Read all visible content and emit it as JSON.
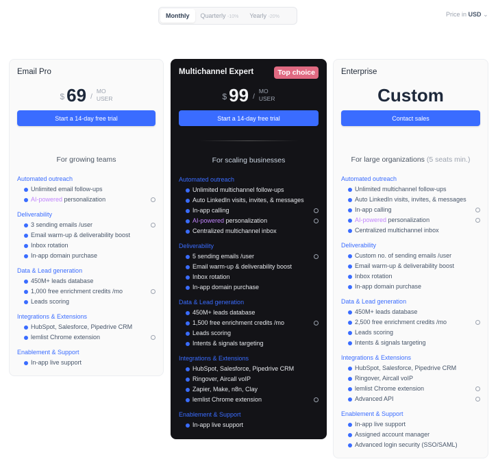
{
  "billing": {
    "options": [
      {
        "label": "Monthly",
        "discount": ""
      },
      {
        "label": "Quarterly",
        "discount": "-10%"
      },
      {
        "label": "Yearly",
        "discount": "-20%"
      }
    ],
    "selected": "Monthly"
  },
  "currency": {
    "prefix": "Price in",
    "value": "USD"
  },
  "colors": {
    "accent": "#3a6cff",
    "dark_card": "#131317",
    "badge": "#e06a82",
    "ai": "#c084fc"
  },
  "plans": [
    {
      "name": "Email Pro",
      "currency": "$",
      "price": "69",
      "slash": "/",
      "unit1": "MO",
      "unit2": "USER",
      "cta": "Start a 14-day free trial",
      "tagline": "For growing teams",
      "tagline_extra": "",
      "sections": [
        {
          "title": "Automated outreach",
          "items": [
            {
              "text": "Unlimited email follow-ups"
            },
            {
              "ai": "AI-powered",
              "text": " personalization",
              "info": true
            }
          ]
        },
        {
          "title": "Deliverability",
          "items": [
            {
              "text": "3 sending emails /user",
              "info": true
            },
            {
              "text": "Email warm-up & deliverability boost"
            },
            {
              "text": "Inbox rotation"
            },
            {
              "text": "In-app domain purchase"
            }
          ]
        },
        {
          "title": "Data & Lead generation",
          "items": [
            {
              "text": "450M+ leads database"
            },
            {
              "text": "1,000 free enrichment credits /mo",
              "info": true
            },
            {
              "text": "Leads scoring"
            }
          ]
        },
        {
          "title": "Integrations & Extensions",
          "items": [
            {
              "text": "HubSpot, Salesforce, Pipedrive CRM"
            },
            {
              "text": "lemlist Chrome extension",
              "info": true
            }
          ]
        },
        {
          "title": "Enablement & Support",
          "items": [
            {
              "text": "In-app live support"
            }
          ]
        }
      ]
    },
    {
      "name": "Multichannel Expert",
      "badge": "Top choice",
      "currency": "$",
      "price": "99",
      "slash": "/",
      "unit1": "MO",
      "unit2": "USER",
      "cta": "Start a 14-day free trial",
      "tagline": "For scaling businesses",
      "tagline_extra": "",
      "sections": [
        {
          "title": "Automated outreach",
          "items": [
            {
              "text": "Unlimited multichannel follow-ups"
            },
            {
              "text": "Auto LinkedIn visits, invites, & messages"
            },
            {
              "text": "In-app calling",
              "info": true
            },
            {
              "ai": "AI-powered",
              "text": " personalization",
              "info": true
            },
            {
              "text": "Centralized multichannel inbox"
            }
          ]
        },
        {
          "title": "Deliverability",
          "items": [
            {
              "text": "5 sending emails /user",
              "info": true
            },
            {
              "text": "Email warm-up & deliverability boost"
            },
            {
              "text": "Inbox rotation"
            },
            {
              "text": "In-app domain purchase"
            }
          ]
        },
        {
          "title": "Data & Lead generation",
          "items": [
            {
              "text": "450M+ leads database"
            },
            {
              "text": "1,500 free enrichment credits /mo",
              "info": true
            },
            {
              "text": "Leads scoring"
            },
            {
              "text": "Intents & signals targeting"
            }
          ]
        },
        {
          "title": "Integrations & Extensions",
          "items": [
            {
              "text": "HubSpot, Salesforce, Pipedrive CRM"
            },
            {
              "text": "Ringover, Aircall voIP"
            },
            {
              "text": "Zapier, Make, n8n, Clay"
            },
            {
              "text": "lemlist Chrome extension",
              "info": true
            }
          ]
        },
        {
          "title": "Enablement & Support",
          "items": [
            {
              "text": "In-app live support"
            }
          ]
        }
      ]
    },
    {
      "name": "Enterprise",
      "custom": "Custom",
      "cta": "Contact sales",
      "tagline": "For large organizations",
      "tagline_extra": " (5 seats min.)",
      "sections": [
        {
          "title": "Automated outreach",
          "items": [
            {
              "text": "Unlimited multichannel follow-ups"
            },
            {
              "text": "Auto LinkedIn visits, invites, & messages"
            },
            {
              "text": "In-app calling",
              "info": true
            },
            {
              "ai": "AI-powered",
              "text": " personalization",
              "info": true
            },
            {
              "text": "Centralized multichannel inbox"
            }
          ]
        },
        {
          "title": "Deliverability",
          "items": [
            {
              "text": "Custom no. of sending emails /user"
            },
            {
              "text": "Email warm-up & deliverability boost"
            },
            {
              "text": "Inbox rotation"
            },
            {
              "text": "In-app domain purchase"
            }
          ]
        },
        {
          "title": "Data & Lead generation",
          "items": [
            {
              "text": "450M+ leads database"
            },
            {
              "text": "2,500 free enrichment credits /mo",
              "info": true
            },
            {
              "text": "Leads scoring"
            },
            {
              "text": "Intents & signals targeting"
            }
          ]
        },
        {
          "title": "Integrations & Extensions",
          "items": [
            {
              "text": "HubSpot, Salesforce, Pipedrive CRM"
            },
            {
              "text": "Ringover, Aircall voIP"
            },
            {
              "text": "lemlist Chrome extension",
              "info": true
            },
            {
              "text": "Advanced API",
              "info": true
            }
          ]
        },
        {
          "title": "Enablement & Support",
          "items": [
            {
              "text": "In-app live support"
            },
            {
              "text": "Assigned account manager"
            },
            {
              "text": "Advanced login security (SSO/SAML)"
            }
          ]
        }
      ]
    }
  ]
}
